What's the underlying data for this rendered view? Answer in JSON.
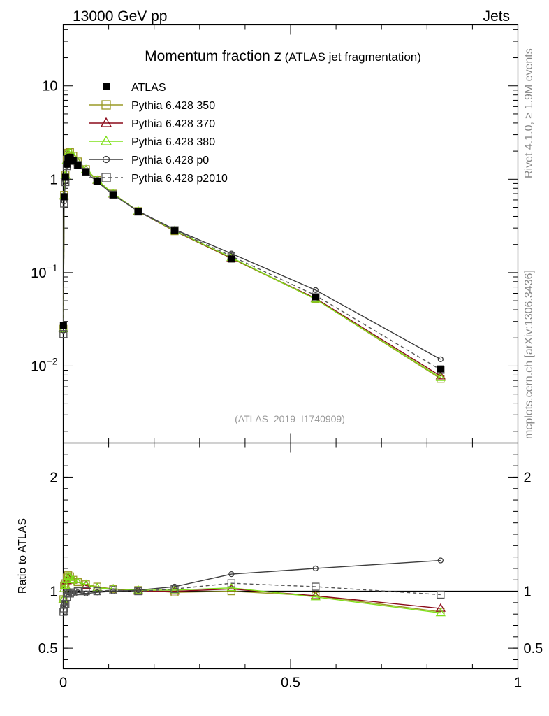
{
  "header": {
    "process": "13000 GeV pp",
    "category": "Jets"
  },
  "side_labels": {
    "rivet": "Rivet 4.1.0, ≥ 1.9M events",
    "source": "mcplots.cern.ch [arXiv:1306.3436]"
  },
  "chart_data": {
    "type": "line",
    "title": "Momentum fraction z",
    "subtitle": "(ATLAS jet fragmentation)",
    "analysis_tag": "(ATLAS_2019_I1740909)",
    "xlabel": "",
    "ylabel": "",
    "ratio_ylabel": "Ratio to ATLAS",
    "xlim": [
      0,
      1
    ],
    "ylim": [
      0.0015,
      45
    ],
    "yscale": "log",
    "ratio_ylim": [
      0.32,
      2.3
    ],
    "x_ticks": [
      {
        "value": 0,
        "label": "0"
      },
      {
        "value": 0.5,
        "label": "0.5"
      },
      {
        "value": 1,
        "label": "1"
      }
    ],
    "y_ticks": [
      {
        "value": 10,
        "base": "10",
        "exp": ""
      },
      {
        "value": 1,
        "base": "1",
        "exp": ""
      },
      {
        "value": 0.1,
        "base": "10",
        "exp": "−1"
      },
      {
        "value": 0.01,
        "base": "10",
        "exp": "−2"
      }
    ],
    "ratio_ticks": [
      {
        "value": 2,
        "label": "2"
      },
      {
        "value": 1,
        "label": "1"
      },
      {
        "value": 0.5,
        "label": "0.5"
      }
    ],
    "legend_position": "top-left",
    "x": [
      0.0005,
      0.002,
      0.005,
      0.008,
      0.011,
      0.015,
      0.022,
      0.032,
      0.05,
      0.075,
      0.11,
      0.165,
      0.245,
      0.37,
      0.555,
      0.83
    ],
    "data": {
      "name": "ATLAS",
      "values": [
        0.027,
        0.65,
        1.05,
        1.45,
        1.68,
        1.72,
        1.58,
        1.42,
        1.2,
        0.95,
        0.68,
        0.45,
        0.28,
        0.14,
        0.055,
        0.0093
      ]
    },
    "series": [
      {
        "name": "Pythia 6.428 350",
        "color": "#9a9a26",
        "marker": "square-open",
        "dashed": false,
        "values": [
          0.025,
          0.68,
          1.12,
          1.62,
          1.92,
          1.95,
          1.78,
          1.55,
          1.28,
          0.98,
          0.7,
          0.455,
          0.278,
          0.142,
          0.052,
          0.0073
        ]
      },
      {
        "name": "Pythia 6.428 370",
        "color": "#8b0a1a",
        "marker": "triangle-open",
        "dashed": false,
        "values": [
          0.025,
          0.66,
          1.1,
          1.58,
          1.88,
          1.92,
          1.75,
          1.53,
          1.26,
          0.97,
          0.69,
          0.452,
          0.28,
          0.143,
          0.053,
          0.0078
        ]
      },
      {
        "name": "Pythia 6.428 380",
        "color": "#7fe01a",
        "marker": "triangle-open",
        "dashed": false,
        "values": [
          0.025,
          0.66,
          1.1,
          1.59,
          1.9,
          1.93,
          1.76,
          1.54,
          1.27,
          0.975,
          0.695,
          0.455,
          0.282,
          0.145,
          0.052,
          0.0075
        ]
      },
      {
        "name": "Pythia 6.428 p0",
        "color": "#3c3c3c",
        "marker": "circle-open",
        "dashed": false,
        "values": [
          0.024,
          0.58,
          0.95,
          1.4,
          1.67,
          1.7,
          1.55,
          1.4,
          1.18,
          0.94,
          0.68,
          0.455,
          0.29,
          0.16,
          0.065,
          0.0118
        ]
      },
      {
        "name": "Pythia 6.428 p2010",
        "color": "#555555",
        "marker": "square-open",
        "dashed": true,
        "values": [
          0.022,
          0.55,
          0.93,
          1.38,
          1.65,
          1.69,
          1.57,
          1.42,
          1.2,
          0.95,
          0.685,
          0.45,
          0.285,
          0.15,
          0.057,
          0.0091
        ]
      }
    ],
    "ratios": [
      {
        "name": "Pythia 6.428 350",
        "values": [
          0.93,
          1.05,
          1.07,
          1.12,
          1.14,
          1.13,
          1.1,
          1.08,
          1.06,
          1.04,
          1.02,
          1.01,
          0.99,
          1.0,
          0.96,
          0.82
        ]
      },
      {
        "name": "Pythia 6.428 370",
        "values": [
          0.93,
          1.02,
          1.05,
          1.09,
          1.12,
          1.12,
          1.1,
          1.08,
          1.05,
          1.03,
          1.02,
          1.0,
          1.0,
          1.02,
          0.96,
          0.85
        ]
      },
      {
        "name": "Pythia 6.428 380",
        "values": [
          0.93,
          1.02,
          1.05,
          1.1,
          1.13,
          1.12,
          1.1,
          1.08,
          1.06,
          1.03,
          1.02,
          1.01,
          1.01,
          1.03,
          0.95,
          0.81
        ]
      },
      {
        "name": "Pythia 6.428 p0",
        "values": [
          0.88,
          0.89,
          0.9,
          0.97,
          0.99,
          0.99,
          0.98,
          0.99,
          0.98,
          0.99,
          1.0,
          1.01,
          1.04,
          1.15,
          1.2,
          1.27
        ]
      },
      {
        "name": "Pythia 6.428 p2010",
        "values": [
          0.82,
          0.85,
          0.89,
          0.95,
          0.98,
          0.98,
          0.99,
          1.0,
          1.0,
          1.0,
          1.01,
          1.0,
          1.02,
          1.07,
          1.04,
          0.97
        ]
      }
    ]
  }
}
